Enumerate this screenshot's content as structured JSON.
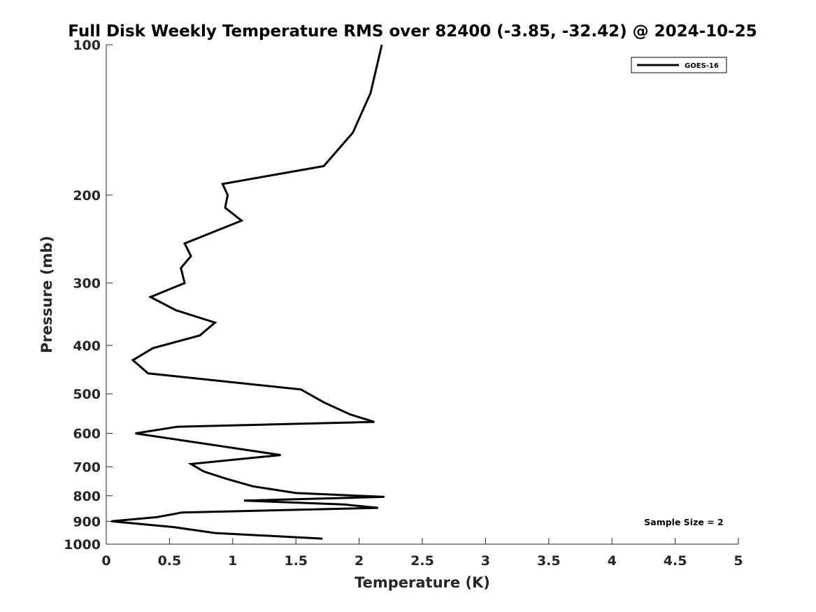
{
  "chart_data": {
    "type": "line",
    "title": "Full Disk Weekly Temperature RMS over 82400 (-3.85, -32.42) @ 2024-10-25",
    "xlabel": "Temperature (K)",
    "ylabel": "Pressure (mb)",
    "xlim": [
      0,
      5
    ],
    "ylim": [
      100,
      1000
    ],
    "y_scale": "log",
    "y_reversed": true,
    "x_ticks": [
      "0",
      "0.5",
      "1",
      "1.5",
      "2",
      "2.5",
      "3",
      "3.5",
      "4",
      "4.5",
      "5"
    ],
    "y_ticks": [
      "100",
      "200",
      "300",
      "400",
      "500",
      "600",
      "700",
      "800",
      "900",
      "1000"
    ],
    "grid": false,
    "legend": {
      "position": "top-right",
      "entries": [
        "GOES-16"
      ]
    },
    "annotations": [
      "Sample Size = 2"
    ],
    "series": [
      {
        "name": "GOES-16",
        "color": "#000000",
        "points": [
          [
            2.18,
            100
          ],
          [
            2.09,
            125
          ],
          [
            1.95,
            150
          ],
          [
            1.72,
            175
          ],
          [
            0.92,
            190
          ],
          [
            0.96,
            200
          ],
          [
            0.94,
            212
          ],
          [
            1.07,
            225
          ],
          [
            0.62,
            250
          ],
          [
            0.67,
            265
          ],
          [
            0.59,
            280
          ],
          [
            0.62,
            300
          ],
          [
            0.35,
            320
          ],
          [
            0.55,
            340
          ],
          [
            0.86,
            360
          ],
          [
            0.74,
            382
          ],
          [
            0.37,
            405
          ],
          [
            0.21,
            428
          ],
          [
            0.33,
            455
          ],
          [
            1.54,
            490
          ],
          [
            1.72,
            520
          ],
          [
            1.93,
            550
          ],
          [
            2.12,
            569
          ],
          [
            0.56,
            582
          ],
          [
            0.23,
            600
          ],
          [
            0.92,
            637
          ],
          [
            1.38,
            663
          ],
          [
            0.67,
            691
          ],
          [
            0.77,
            715
          ],
          [
            0.95,
            740
          ],
          [
            1.16,
            766
          ],
          [
            1.5,
            790
          ],
          [
            2.2,
            804
          ],
          [
            1.09,
            818
          ],
          [
            1.88,
            833
          ],
          [
            2.15,
            846
          ],
          [
            0.6,
            864
          ],
          [
            0.4,
            883
          ],
          [
            0.04,
            900
          ],
          [
            0.54,
            925
          ],
          [
            0.86,
            950
          ],
          [
            1.71,
            975
          ]
        ]
      }
    ]
  }
}
